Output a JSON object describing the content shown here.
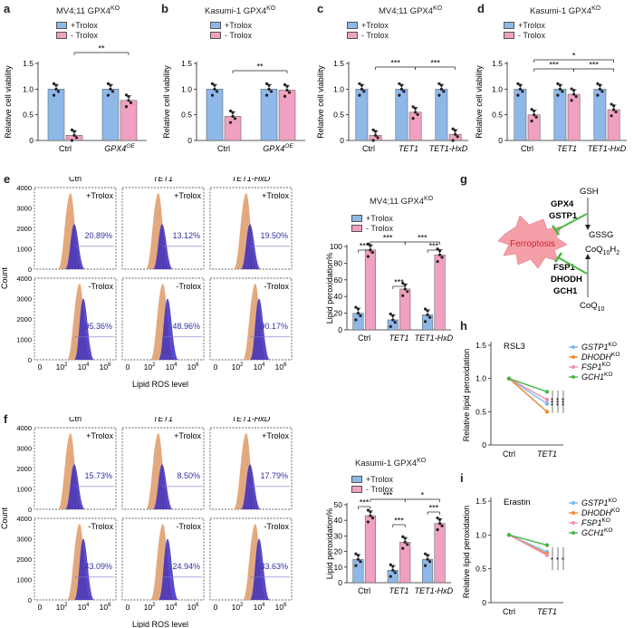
{
  "colors": {
    "trolox_plus": "#8eb8e8",
    "trolox_minus": "#f0a0c0",
    "flow_blue": "#3a2cc0",
    "flow_orange": "#e0a070",
    "ferro": "#f5a0a8",
    "green": "#5cc060"
  },
  "panels": {
    "a": {
      "label": "a",
      "title": "MV4;11 GPX4",
      "title_sup": "KO"
    },
    "b": {
      "label": "b",
      "title": "Kasumi-1 GPX4",
      "title_sup": "KO"
    },
    "c": {
      "label": "c",
      "title": "MV4;11 GPX4",
      "title_sup": "KO"
    },
    "d": {
      "label": "d",
      "title": "Kasumi-1 GPX4",
      "title_sup": "KO"
    },
    "e": {
      "label": "e"
    },
    "f": {
      "label": "f"
    },
    "g": {
      "label": "g"
    },
    "h": {
      "label": "h"
    },
    "i": {
      "label": "i"
    }
  },
  "legend": {
    "plus": "+Trolox",
    "minus": "- Trolox"
  },
  "chart_data": [
    {
      "id": "a",
      "type": "bar",
      "ylabel": "Relative cell viability",
      "ylim": [
        0,
        1.5
      ],
      "yticks": [
        "0",
        "0.5",
        "1.0",
        "1.5"
      ],
      "categories": [
        "Ctrl",
        "GPX4"
      ],
      "category_sup": [
        "",
        "OE"
      ],
      "series": [
        {
          "name": "+Trolox",
          "values": [
            1.0,
            1.0
          ]
        },
        {
          "name": "- Trolox",
          "values": [
            0.1,
            0.78
          ]
        }
      ],
      "sig": [
        {
          "text": "**"
        }
      ]
    },
    {
      "id": "b",
      "type": "bar",
      "ylabel": "Relative cell viability",
      "ylim": [
        0,
        1.5
      ],
      "yticks": [
        "0",
        "0.5",
        "1.0",
        "1.5"
      ],
      "categories": [
        "Ctrl",
        "GPX4"
      ],
      "category_sup": [
        "",
        "OE"
      ],
      "series": [
        {
          "name": "+Trolox",
          "values": [
            1.0,
            1.0
          ]
        },
        {
          "name": "- Trolox",
          "values": [
            0.47,
            0.98
          ]
        }
      ],
      "sig": [
        {
          "text": "**"
        }
      ]
    },
    {
      "id": "c",
      "type": "bar",
      "ylabel": "Relative cell viability",
      "ylim": [
        0,
        1.5
      ],
      "yticks": [
        "0",
        "0.5",
        "1.0",
        "1.5"
      ],
      "categories": [
        "Ctrl",
        "TET1",
        "TET1-HxD"
      ],
      "series": [
        {
          "name": "+Trolox",
          "values": [
            1.0,
            1.0,
            1.0
          ]
        },
        {
          "name": "- Trolox",
          "values": [
            0.1,
            0.55,
            0.12
          ]
        }
      ],
      "sig": [
        {
          "text": "***"
        },
        {
          "text": "***"
        }
      ]
    },
    {
      "id": "d",
      "type": "bar",
      "ylabel": "Relative cell viability",
      "ylim": [
        0,
        1.5
      ],
      "yticks": [
        "0",
        "0.5",
        "1.0",
        "1.5"
      ],
      "categories": [
        "Ctrl",
        "TET1",
        "TET1-HxD"
      ],
      "series": [
        {
          "name": "+Trolox",
          "values": [
            1.0,
            1.0,
            1.0
          ]
        },
        {
          "name": "- Trolox",
          "values": [
            0.5,
            0.9,
            0.6
          ]
        }
      ],
      "sig": [
        {
          "text": "***"
        },
        {
          "text": "***"
        },
        {
          "text": "*"
        }
      ]
    },
    {
      "id": "e_bar",
      "type": "bar",
      "title": "MV4;11 GPX4",
      "title_sup": "KO",
      "ylabel": "Lipid peroxidation%",
      "ylim": [
        0,
        100
      ],
      "yticks": [
        "0",
        "20",
        "40",
        "60",
        "80",
        "100"
      ],
      "categories": [
        "Ctrl",
        "TET1",
        "TET1-HxD"
      ],
      "series": [
        {
          "name": "+Trolox",
          "values": [
            20,
            12,
            18
          ]
        },
        {
          "name": "- Trolox",
          "values": [
            96,
            49,
            90
          ]
        }
      ],
      "sig": [
        {
          "text": "***"
        },
        {
          "text": "***"
        },
        {
          "text": "***"
        },
        {
          "text": "***"
        },
        {
          "text": "***"
        }
      ]
    },
    {
      "id": "f_bar",
      "type": "bar",
      "title": "Kasumi-1 GPX4",
      "title_sup": "KO",
      "ylabel": "Lipid peroxidation%",
      "ylim": [
        0,
        50
      ],
      "yticks": [
        "0",
        "10",
        "20",
        "30",
        "40",
        "50"
      ],
      "categories": [
        "Ctrl",
        "TET1",
        "TET1-HxD"
      ],
      "series": [
        {
          "name": "+Trolox",
          "values": [
            15,
            8,
            15
          ]
        },
        {
          "name": "- Trolox",
          "values": [
            43,
            26,
            38
          ]
        }
      ],
      "sig": [
        {
          "text": "***"
        },
        {
          "text": "***"
        },
        {
          "text": "*"
        },
        {
          "text": "***"
        },
        {
          "text": "***"
        }
      ]
    },
    {
      "id": "h",
      "type": "line",
      "title": "RSL3",
      "ylabel": "Relative lipid peroxidation",
      "ylim": [
        0,
        1.5
      ],
      "yticks": [
        "0",
        "0.5",
        "1.0",
        "1.5"
      ],
      "x": [
        "Ctrl",
        "TET1"
      ],
      "series": [
        {
          "name": "GSTP1",
          "sup": "KO",
          "color": "#7ab8f0",
          "values": [
            1.0,
            0.62
          ]
        },
        {
          "name": "DHODH",
          "sup": "KO",
          "color": "#f08a30",
          "values": [
            1.0,
            0.5
          ]
        },
        {
          "name": "FSP1",
          "sup": "KO",
          "color": "#f090b0",
          "values": [
            1.0,
            0.68
          ]
        },
        {
          "name": "GCH1",
          "sup": "KO",
          "color": "#48b848",
          "values": [
            1.0,
            0.8
          ]
        }
      ],
      "sig": [
        {
          "text": "***"
        },
        {
          "text": "***"
        },
        {
          "text": "***"
        }
      ]
    },
    {
      "id": "i",
      "type": "line",
      "title": "Erastin",
      "ylabel": "Relative lipid peroxidation",
      "ylim": [
        0,
        1.5
      ],
      "yticks": [
        "0",
        "0.5",
        "1.0",
        "1.5"
      ],
      "x": [
        "Ctrl",
        "TET1"
      ],
      "series": [
        {
          "name": "GSTP1",
          "sup": "KO",
          "color": "#7ab8f0",
          "values": [
            1.0,
            0.75
          ]
        },
        {
          "name": "DHODH",
          "sup": "KO",
          "color": "#f08a30",
          "values": [
            1.0,
            0.72
          ]
        },
        {
          "name": "FSP1",
          "sup": "KO",
          "color": "#f090b0",
          "values": [
            1.0,
            0.7
          ]
        },
        {
          "name": "GCH1",
          "sup": "KO",
          "color": "#48b848",
          "values": [
            1.0,
            0.85
          ]
        }
      ],
      "sig": [
        {
          "text": "*"
        },
        {
          "text": "*"
        },
        {
          "text": "*"
        }
      ]
    }
  ],
  "flow": {
    "col_titles": [
      "Ctrl",
      "TET1",
      "TET1-HxD"
    ],
    "ylabel": "Count",
    "xlabel": "Lipid ROS level",
    "plus": "+Trolox",
    "minus": "-Trolox",
    "e_plus": [
      "20.89%",
      "13.12%",
      "19.50%"
    ],
    "e_minus": [
      "95.36%",
      "48.96%",
      "90.17%"
    ],
    "f_plus": [
      "15.73%",
      "8.50%",
      "17.79%"
    ],
    "f_minus": [
      "43.09%",
      "24.94%",
      "33.63%"
    ],
    "e_yticks": [
      "0",
      "1000",
      "2000",
      "3000",
      "4000"
    ],
    "f_yticks": [
      "0",
      "1000",
      "2000",
      "3000",
      "4000"
    ],
    "xticks": [
      "0",
      "10",
      "10",
      "10"
    ],
    "xtick_sups": [
      "",
      "2",
      "4",
      "6"
    ]
  },
  "pathway": {
    "ferroptosis": "Ferroptosis",
    "gsh": "GSH",
    "gpx4": "GPX4",
    "gstp1": "GSTP1",
    "gssg": "GSSG",
    "coqh2": "CoQ",
    "coqh2_sub": "10",
    "coqh2_tail": "H",
    "coqh2_tail_sub": "2",
    "fsp1": "FSP1",
    "dhodh": "DHODH",
    "gch1": "GCH1",
    "coq": "CoQ",
    "coq_sub": "10"
  }
}
